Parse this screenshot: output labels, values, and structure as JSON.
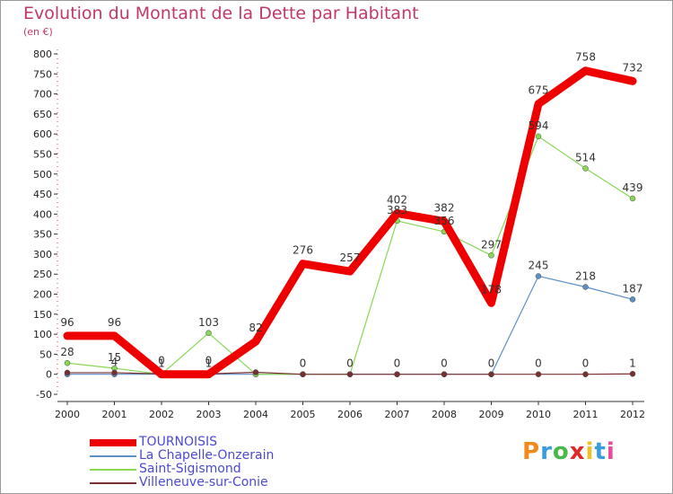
{
  "header": {
    "title": "Evolution du Montant de la Dette par Habitant",
    "unit": "(en €)"
  },
  "chart_data": {
    "type": "line",
    "title": "Evolution du Montant de la Dette par Habitant",
    "subtitle": "(en €)",
    "xlabel": "",
    "ylabel": "",
    "x": [
      "2000",
      "2001",
      "2002",
      "2003",
      "2004",
      "2005",
      "2006",
      "2007",
      "2008",
      "2009",
      "2010",
      "2011",
      "2012"
    ],
    "ylim": [
      -50,
      800
    ],
    "yticks": [
      -50,
      0,
      50,
      100,
      150,
      200,
      250,
      300,
      350,
      400,
      450,
      500,
      550,
      600,
      650,
      700,
      750,
      800
    ],
    "grid": false,
    "legend_position": "bottom-left",
    "series": [
      {
        "name": "TOURNOISIS",
        "color": "#ee0000",
        "values": [
          96,
          96,
          0,
          0,
          82,
          276,
          257,
          402,
          382,
          178,
          675,
          758,
          732
        ],
        "labels": [
          "96",
          "96",
          "0",
          "0",
          "82",
          "276",
          "257",
          "402",
          "382",
          "178",
          "675",
          "758",
          "732"
        ]
      },
      {
        "name": "La Chapelle-Onzerain",
        "color": "#5b8fc8",
        "values": [
          0,
          0,
          0,
          0,
          0,
          0,
          0,
          0,
          0,
          0,
          245,
          218,
          187
        ],
        "labels": [
          "",
          "",
          "",
          "",
          "",
          "",
          "",
          "",
          "",
          "",
          "245",
          "218",
          "187"
        ]
      },
      {
        "name": "Saint-Sigismond",
        "color": "#88d855",
        "values": [
          28,
          15,
          0,
          103,
          0,
          0,
          0,
          383,
          356,
          297,
          594,
          514,
          439
        ],
        "labels": [
          "28",
          "15",
          "",
          "103",
          "",
          "",
          "",
          "383",
          "356",
          "297",
          "594",
          "514",
          "439"
        ]
      },
      {
        "name": "Villeneuve-sur-Conie",
        "color": "#7a3030",
        "values": [
          4,
          4,
          1,
          1,
          5,
          0,
          0,
          0,
          0,
          0,
          0,
          0,
          1
        ],
        "labels": [
          "",
          "4",
          "1",
          "1",
          "",
          "0",
          "0",
          "0",
          "0",
          "0",
          "0",
          "0",
          "1"
        ]
      }
    ]
  },
  "logo": {
    "text": "Proxiti",
    "colors": [
      "#f08a1c",
      "#3a9de0",
      "#48b848",
      "#e02a2a",
      "#f0c020",
      "#3a9de0",
      "#e84a9a"
    ]
  }
}
